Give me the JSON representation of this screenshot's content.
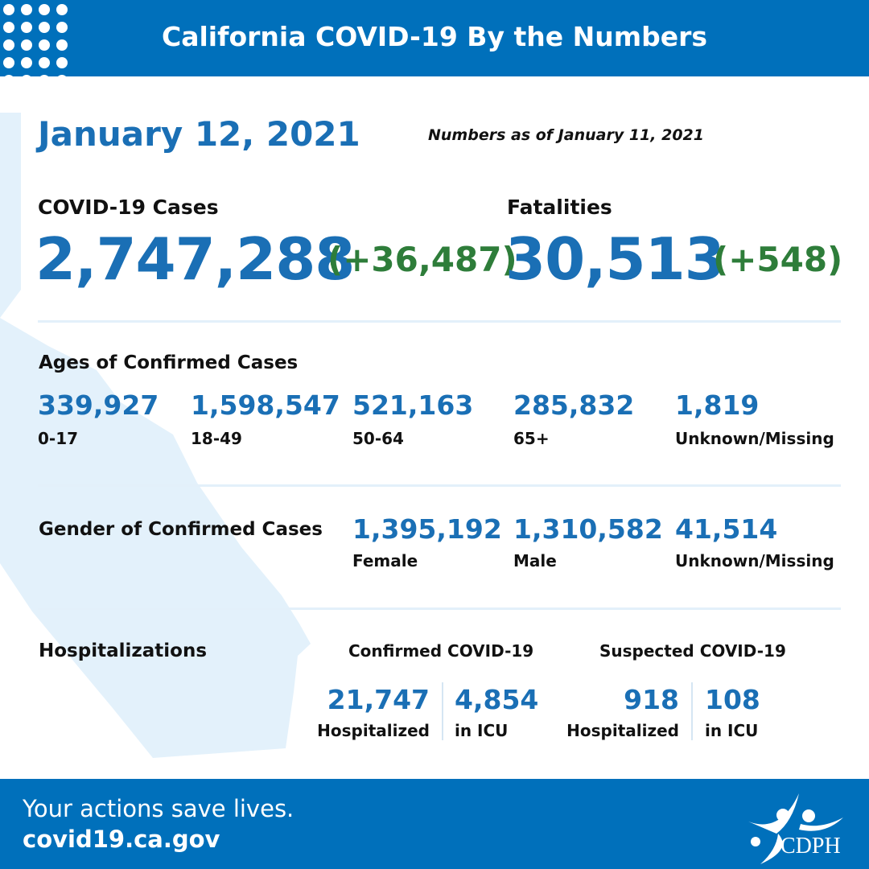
{
  "header": {
    "title": "California COVID-19 By the Numbers"
  },
  "date": "January 12, 2021",
  "as_of": "Numbers as of January 11, 2021",
  "cases": {
    "label": "COVID-19 Cases",
    "value": "2,747,288",
    "delta": "(+36,487)"
  },
  "fatalities": {
    "label": "Fatalities",
    "value": "30,513",
    "delta": "(+548)"
  },
  "ages": {
    "title": "Ages of Confirmed Cases",
    "items": [
      {
        "value": "339,927",
        "label": "0-17"
      },
      {
        "value": "1,598,547",
        "label": "18-49"
      },
      {
        "value": "521,163",
        "label": "50-64"
      },
      {
        "value": "285,832",
        "label": "65+"
      },
      {
        "value": "1,819",
        "label": "Unknown/Missing"
      }
    ]
  },
  "gender": {
    "title": "Gender of Confirmed Cases",
    "items": [
      {
        "value": "1,395,192",
        "label": "Female"
      },
      {
        "value": "1,310,582",
        "label": "Male"
      },
      {
        "value": "41,514",
        "label": "Unknown/Missing"
      }
    ]
  },
  "hosp": {
    "title": "Hospitalizations",
    "confirmed": {
      "title": "Confirmed COVID-19",
      "hosp_value": "21,747",
      "hosp_label": "Hospitalized",
      "icu_value": "4,854",
      "icu_label": "in ICU"
    },
    "suspected": {
      "title": "Suspected COVID-19",
      "hosp_value": "918",
      "hosp_label": "Hospitalized",
      "icu_value": "108",
      "icu_label": "in ICU"
    }
  },
  "footer": {
    "tagline": "Your actions save lives.",
    "url": "covid19.ca.gov",
    "logo_text": "CDPH"
  },
  "colors": {
    "brand_blue": "#0070bb",
    "number_blue": "#1a6fb5",
    "delta_green": "#2e7d3a",
    "map": "#e3f1fb"
  }
}
